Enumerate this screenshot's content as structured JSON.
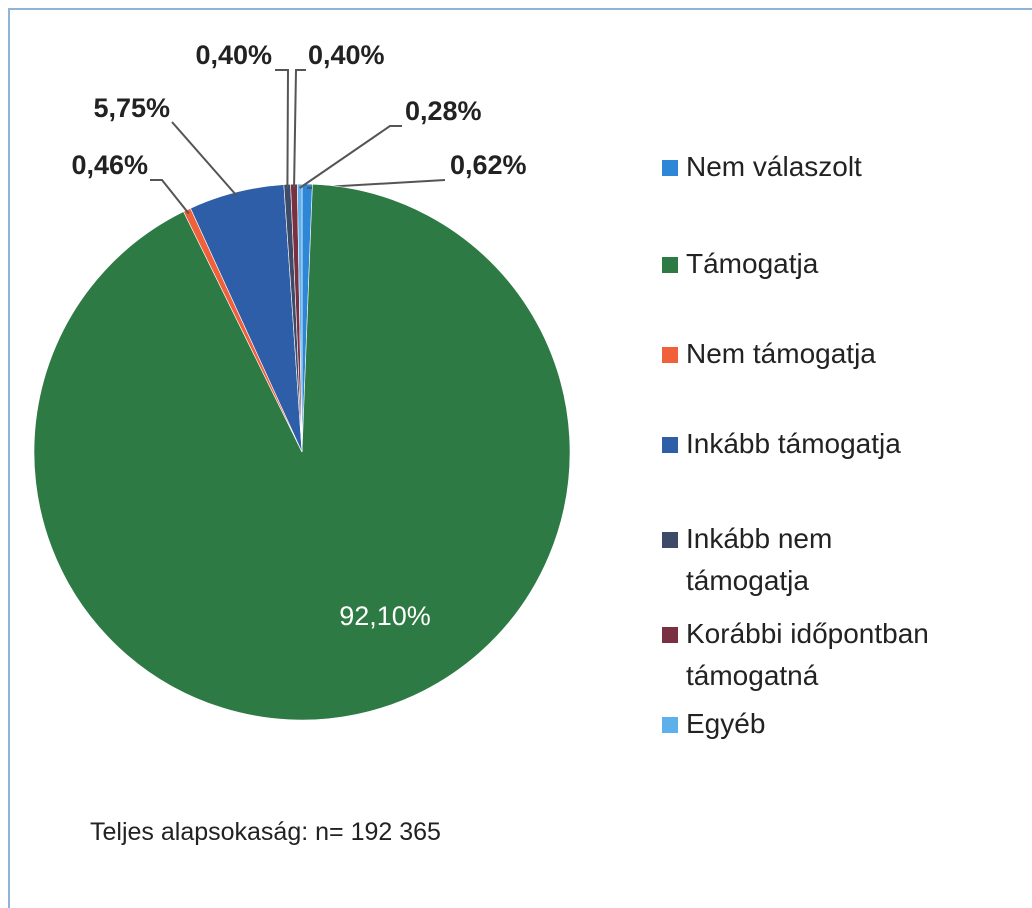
{
  "chart_data": {
    "type": "pie",
    "categories": [
      "Nem válaszolt",
      "Támogatja",
      "Nem támogatja",
      "Inkább támogatja",
      "Inkább nem támogatja",
      "Korábbi időpontban támogatná",
      "Egyéb"
    ],
    "values": [
      0.62,
      92.1,
      0.46,
      5.75,
      0.4,
      0.4,
      0.28
    ],
    "value_labels": [
      "0,62%",
      "92,10%",
      "0,46%",
      "5,75%",
      "0,40%",
      "0,40%",
      "0,28%"
    ],
    "colors": [
      "#2e86d6",
      "#2d7a45",
      "#f0603a",
      "#2f5ea8",
      "#3d4b68",
      "#7a3040",
      "#5db0ea"
    ],
    "note": "Teljes alapsokaság: n= 192 365"
  }
}
